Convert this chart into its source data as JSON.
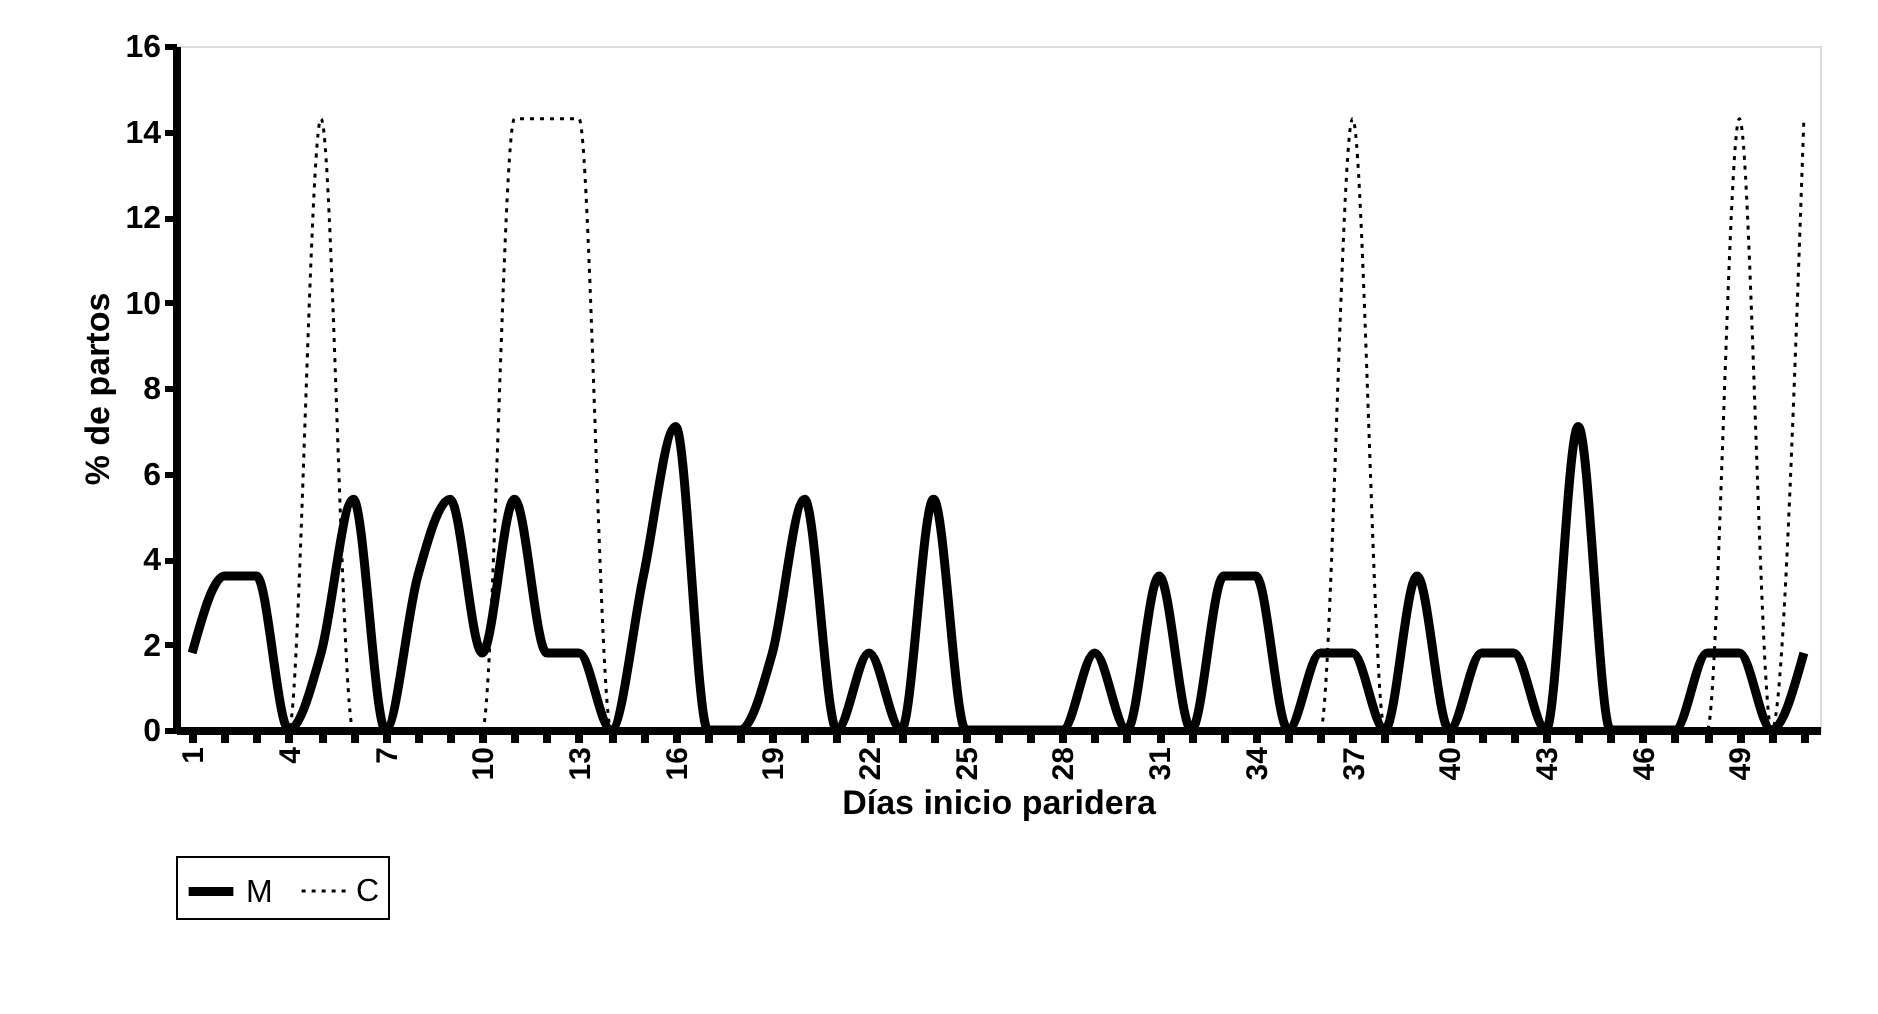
{
  "chart_data": {
    "type": "line",
    "xlabel": "Días inicio paridera",
    "ylabel": "% de partos",
    "categories": [
      "1",
      null,
      null,
      "4",
      null,
      null,
      "7",
      null,
      null,
      "10",
      null,
      null,
      "13",
      null,
      null,
      "16",
      null,
      null,
      "19",
      null,
      null,
      "22",
      null,
      null,
      "25",
      null,
      null,
      "28",
      null,
      null,
      "31",
      null,
      null,
      "34",
      null,
      null,
      "37",
      null,
      null,
      "40",
      null,
      null,
      "43",
      null,
      null,
      "46",
      null,
      null,
      "49",
      null,
      null
    ],
    "series": [
      {
        "name": "M",
        "color": "#000000",
        "line_style": "solid",
        "values": [
          1.8,
          3.6,
          3.6,
          0,
          1.8,
          5.4,
          0,
          3.6,
          5.4,
          1.8,
          5.4,
          1.8,
          1.8,
          0,
          3.6,
          7.1,
          0,
          0,
          1.8,
          5.4,
          0,
          1.8,
          0,
          5.4,
          0,
          0,
          0,
          0,
          1.8,
          0,
          3.6,
          0,
          3.6,
          3.6,
          0,
          1.8,
          1.8,
          0,
          3.6,
          0,
          1.8,
          1.8,
          0,
          7.1,
          0,
          0,
          0,
          1.8,
          1.8,
          0,
          1.8
        ]
      },
      {
        "name": "C",
        "color": "#000000",
        "line_style": "dotted",
        "values": [
          0,
          0,
          0,
          0,
          14.3,
          0,
          0,
          0,
          0,
          0,
          14.3,
          14.3,
          14.3,
          0,
          0,
          0,
          0,
          0,
          0,
          0,
          0,
          0,
          0,
          0,
          0,
          0,
          0,
          0,
          0,
          0,
          0,
          0,
          0,
          0,
          0,
          0,
          14.3,
          0,
          0,
          0,
          0,
          0,
          0,
          0,
          0,
          0,
          0,
          0,
          14.3,
          0,
          14.3
        ]
      }
    ],
    "ylim": [
      0,
      16
    ],
    "yticks": [
      0,
      2,
      4,
      6,
      8,
      10,
      12,
      14,
      16
    ],
    "grid": false,
    "legend": "bottom",
    "marker": "none"
  }
}
